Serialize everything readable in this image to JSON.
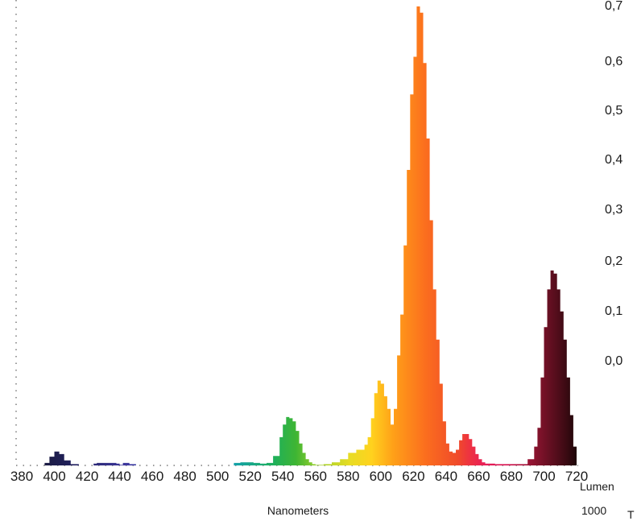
{
  "chart_data": {
    "type": "area",
    "xlabel": "Nanometers",
    "x_ticks": [
      380,
      400,
      420,
      440,
      460,
      480,
      500,
      520,
      540,
      560,
      580,
      600,
      620,
      640,
      660,
      680,
      700,
      720
    ],
    "y_tick_labels": [
      "0,7",
      "0,6",
      "0,5",
      "0,4",
      "0,3",
      "0,2",
      "0,1",
      "0,0"
    ],
    "extra_labels": {
      "lumen": "Lumen",
      "lumen_value": "1000",
      "cutoff_glyph": "T"
    },
    "grid": false,
    "series": [
      {
        "x": [
          380,
          390,
          394,
          397,
          400,
          403,
          406,
          410,
          415,
          420,
          424,
          426,
          430,
          434,
          438,
          440,
          442,
          446,
          450,
          460,
          470,
          480,
          490,
          500,
          508,
          510,
          514,
          518,
          522,
          526,
          530,
          534,
          538,
          540,
          542,
          544,
          546,
          548,
          550,
          552,
          554,
          556,
          558,
          560,
          565,
          570,
          575,
          580,
          585,
          590,
          592,
          594,
          596,
          598,
          600,
          602,
          604,
          606,
          608,
          610,
          612,
          614,
          616,
          618,
          620,
          622,
          624,
          626,
          628,
          630,
          632,
          634,
          636,
          638,
          640,
          642,
          644,
          646,
          648,
          650,
          652,
          654,
          656,
          658,
          660,
          662,
          664,
          666,
          670,
          680,
          690,
          694,
          696,
          698,
          700,
          702,
          704,
          706,
          708,
          710,
          712,
          714,
          716,
          718,
          720
        ],
        "y": [
          0,
          0,
          0.004,
          0.014,
          0.022,
          0.018,
          0.008,
          0.002,
          0,
          0,
          0.003,
          0.004,
          0.004,
          0.004,
          0.003,
          0.001,
          0.004,
          0.002,
          0,
          0,
          0,
          0,
          0,
          0,
          0,
          0.004,
          0.005,
          0.005,
          0.004,
          0.003,
          0.004,
          0.015,
          0.045,
          0.065,
          0.077,
          0.075,
          0.07,
          0.055,
          0.035,
          0.02,
          0.01,
          0.005,
          0.002,
          0.001,
          0.002,
          0.005,
          0.01,
          0.02,
          0.025,
          0.033,
          0.045,
          0.075,
          0.115,
          0.135,
          0.13,
          0.11,
          0.09,
          0.065,
          0.09,
          0.175,
          0.24,
          0.35,
          0.47,
          0.59,
          0.65,
          0.73,
          0.72,
          0.64,
          0.52,
          0.39,
          0.28,
          0.2,
          0.13,
          0.07,
          0.035,
          0.022,
          0.02,
          0.025,
          0.04,
          0.05,
          0.05,
          0.042,
          0.03,
          0.018,
          0.01,
          0.005,
          0.003,
          0.003,
          0.002,
          0.002,
          0.01,
          0.03,
          0.06,
          0.14,
          0.22,
          0.28,
          0.31,
          0.305,
          0.28,
          0.245,
          0.2,
          0.14,
          0.08,
          0.03,
          0.01
        ]
      }
    ]
  }
}
